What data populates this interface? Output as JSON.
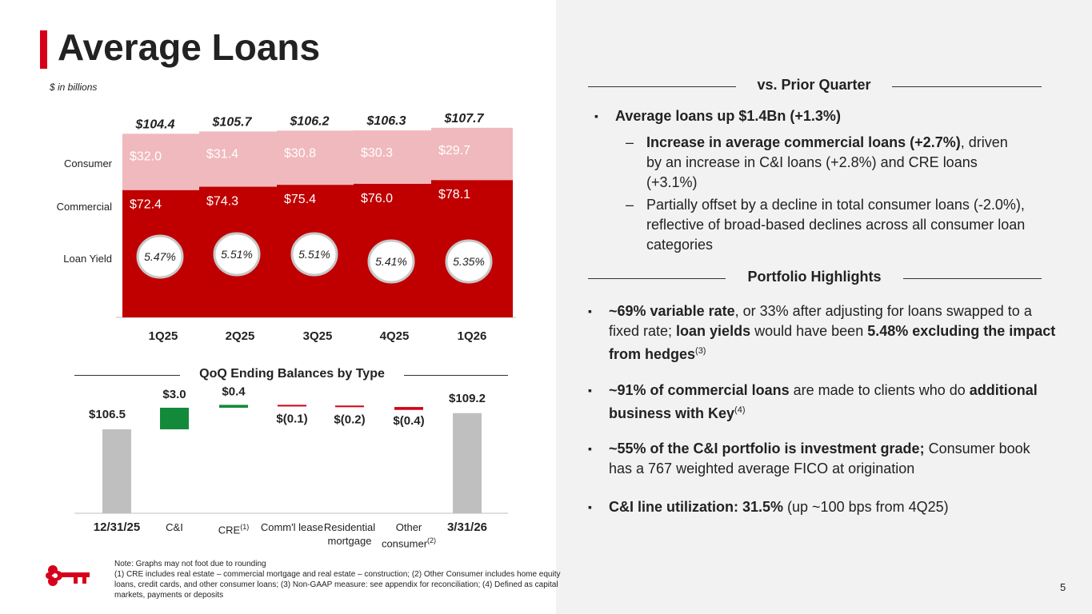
{
  "header": {
    "title": "Average Loans",
    "units": "$ in billions"
  },
  "colors": {
    "commercial": "#c00000",
    "consumer": "#f0b9bd",
    "accent": "#d6001c",
    "yield_line": "#c8c8c8",
    "wf_total": "#bfbfbf",
    "wf_up": "#138a3a",
    "wf_down": "#d00018"
  },
  "row_labels": {
    "consumer": "Consumer",
    "commercial": "Commercial",
    "yield": "Loan Yield"
  },
  "chart_data": [
    {
      "type": "bar",
      "stacked": true,
      "categories": [
        "1Q25",
        "2Q25",
        "3Q25",
        "4Q25",
        "1Q26"
      ],
      "totals": [
        "$104.4",
        "$105.7",
        "$106.2",
        "$106.3",
        "$107.7"
      ],
      "total_values": [
        104.4,
        105.7,
        106.2,
        106.3,
        107.7
      ],
      "series": [
        {
          "name": "Commercial",
          "values": [
            72.4,
            74.3,
            75.4,
            76.0,
            78.1
          ],
          "labels": [
            "$72.4",
            "$74.3",
            "$75.4",
            "$76.0",
            "$78.1"
          ]
        },
        {
          "name": "Consumer",
          "values": [
            32.0,
            31.4,
            30.8,
            30.3,
            29.7
          ],
          "labels": [
            "$32.0",
            "$31.4",
            "$30.8",
            "$30.3",
            "$29.7"
          ]
        }
      ],
      "line_series": {
        "name": "Loan Yield",
        "values": [
          5.47,
          5.51,
          5.51,
          5.41,
          5.35
        ],
        "labels": [
          "5.47%",
          "5.51%",
          "5.51%",
          "5.41%",
          "5.35%"
        ]
      }
    },
    {
      "type": "bar",
      "subtype": "waterfall",
      "title": "QoQ Ending Balances by Type",
      "steps": [
        {
          "label": "12/31/25",
          "sub": "",
          "value": 106.5,
          "kind": "total",
          "value_label": "$106.5"
        },
        {
          "label": "C&I",
          "sub": "",
          "value": 3.0,
          "kind": "delta",
          "value_label": "$3.0"
        },
        {
          "label": "CRE",
          "sub": "(1)",
          "value": 0.4,
          "kind": "delta",
          "value_label": "$0.4"
        },
        {
          "label": "Comm'l lease",
          "sub": "",
          "value": -0.1,
          "kind": "delta",
          "value_label": "$(0.1)"
        },
        {
          "label": "Residential mortgage",
          "sub": "",
          "value": -0.2,
          "kind": "delta",
          "value_label": "$(0.2)"
        },
        {
          "label": "Other consumer",
          "sub": "(2)",
          "value": -0.4,
          "kind": "delta",
          "value_label": "$(0.4)"
        },
        {
          "label": "3/31/26",
          "sub": "",
          "value": 109.2,
          "kind": "total",
          "value_label": "$109.2"
        }
      ]
    }
  ],
  "prior_quarter": {
    "heading": "vs. Prior Quarter",
    "b1": "Average loans up $1.4Bn (+1.3%)",
    "b2_bold": "Increase in average commercial loans (+2.7%)",
    "b2_rest": ", driven by an increase in C&I loans (+2.8%) and CRE loans (+3.1%)",
    "b3": "Partially offset by a decline in total consumer loans (-2.0%), reflective of broad-based declines across all consumer loan categories"
  },
  "highlights": {
    "heading": "Portfolio Highlights",
    "h1_a": "~69% variable rate",
    "h1_b": ", or 33% after adjusting for loans swapped to a fixed rate; ",
    "h1_c": "loan yields",
    "h1_d": " would have been ",
    "h1_e": "5.48% excluding the impact from hedges",
    "h1_f": "(3)",
    "h2_a": "~91% of commercial loans",
    "h2_b": " are made to clients who do ",
    "h2_c": "additional business with Key",
    "h2_d": "(4)",
    "h3_a": "~55% of the C&I portfolio is investment grade;",
    "h3_b": " Consumer book has a 767 weighted average FICO at origination",
    "h4_a": "C&I line utilization: 31.5%",
    "h4_b": " (up ~100 bps from 4Q25)"
  },
  "bullet_marks": {
    "square": "▪",
    "dash": "–"
  },
  "footnotes": {
    "l1": "Note: Graphs may not foot due to rounding",
    "l2": "(1) CRE includes real estate – commercial mortgage and real estate – construction; (2) Other Consumer includes home equity loans, credit cards, and other consumer loans; (3) Non-GAAP measure: see appendix for reconciliation; (4) Defined as capital markets, payments or deposits"
  },
  "page_number": "5",
  "logo": {
    "icon": "key-logo-icon"
  }
}
